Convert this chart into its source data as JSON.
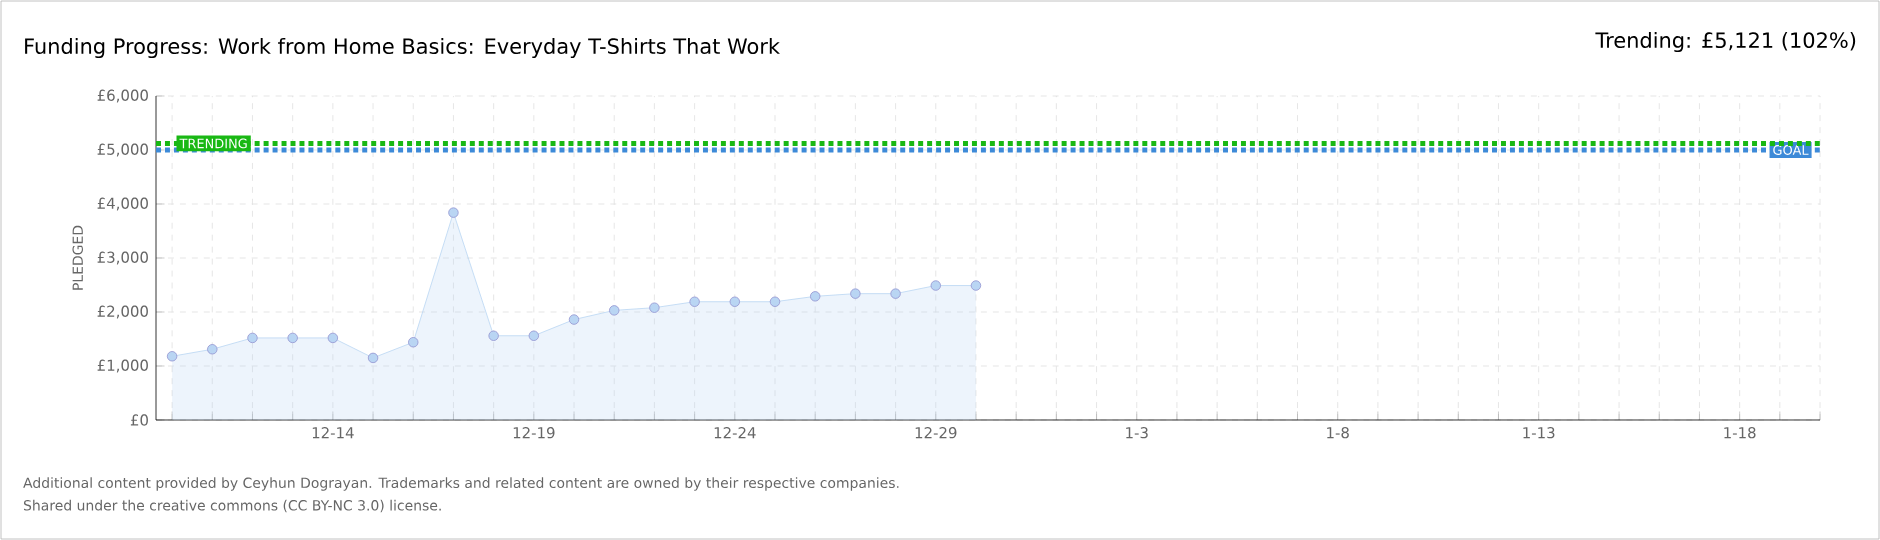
{
  "chart_data": {
    "type": "area",
    "title": "Funding Progress: Work from Home Basics: Everyday T-Shirts That Work",
    "subtitle": "Trending:  £5,121 (102%)",
    "ylabel": "PLEDGED",
    "categories": [
      null,
      null,
      null,
      null,
      "12-14",
      null,
      null,
      null,
      null,
      "12-19",
      null,
      null,
      null,
      null,
      "12-24",
      null,
      null,
      null,
      null,
      "12-29",
      null,
      null,
      null,
      null,
      "1-3",
      null,
      null,
      null,
      null,
      "1-8",
      null,
      null,
      null,
      null,
      "1-13",
      null,
      null,
      null,
      null,
      "1-18",
      null,
      null
    ],
    "series": [
      {
        "color": "#b9d5f3",
        "values": [
          1180,
          1310,
          1520,
          1520,
          1520,
          1150,
          1440,
          3840,
          1560,
          1560,
          1860,
          2030,
          2080,
          2190,
          2190,
          2190,
          2290,
          2340,
          2340,
          2490,
          2490,
          null,
          null,
          null,
          null,
          null,
          null,
          null,
          null,
          null,
          null,
          null,
          null,
          null,
          null,
          null,
          null,
          null,
          null,
          null,
          null,
          null
        ]
      }
    ],
    "ylim": [
      0,
      6000
    ],
    "yticks": [
      {
        "value": 0,
        "label": "£0"
      },
      {
        "value": 1000,
        "label": "£1,000"
      },
      {
        "value": 2000,
        "label": "£2,000"
      },
      {
        "value": 3000,
        "label": "£3,000"
      },
      {
        "value": 4000,
        "label": "£4,000"
      },
      {
        "value": 5000,
        "label": "£5,000"
      },
      {
        "value": 6000,
        "label": "£6,000"
      }
    ],
    "ref_lines": [
      {
        "axis": "y",
        "value": 5000,
        "label": "GOAL",
        "color": "#3d8ad8",
        "line_style": "dotted"
      },
      {
        "axis": "y",
        "value": 5121,
        "label": "TRENDING",
        "color": "#19b814",
        "line_style": "dotted"
      }
    ],
    "grid": true,
    "marker": "circle",
    "annotations": [
      "Additional content provided by Ceyhun Dograyan. Trademarks and related content are owned by their respective companies.",
      "Shared under the creative commons (CC BY-NC 3.0) license."
    ]
  }
}
